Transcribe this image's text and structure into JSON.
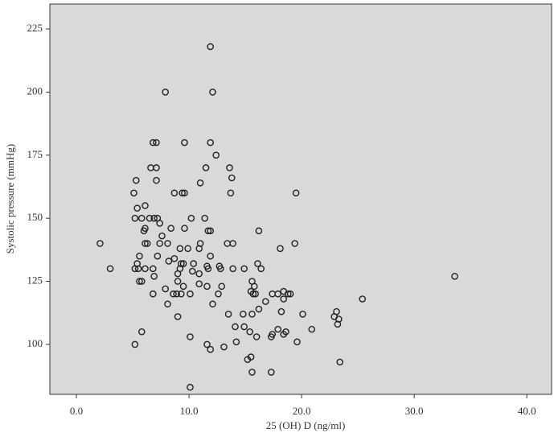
{
  "chart_data": {
    "type": "scatter",
    "xlabel": "25 (OH) D (ng/ml)",
    "ylabel": "Systolic pressure (mmHg)",
    "xlim": [
      -2.36,
      42.2
    ],
    "ylim": [
      80.2,
      234.9
    ],
    "xticks": [
      {
        "value": 0,
        "label": "0.0"
      },
      {
        "value": 10,
        "label": "10.0"
      },
      {
        "value": 20,
        "label": "20.0"
      },
      {
        "value": 30,
        "label": "30.0"
      },
      {
        "value": 40,
        "label": "40.0"
      }
    ],
    "yticks": [
      100,
      125,
      150,
      175,
      200,
      225
    ],
    "color": "#222222",
    "series": [
      {
        "name": "points",
        "x": [
          2.1,
          3.0,
          11.9,
          7.9,
          12.1,
          6.8,
          7.1,
          9.6,
          11.9,
          12.4,
          6.6,
          7.1,
          11.5,
          13.6,
          13.8,
          5.3,
          7.1,
          11.0,
          5.1,
          8.7,
          9.4,
          9.6,
          13.7,
          19.5,
          6.1,
          5.4,
          5.2,
          5.8,
          6.5,
          6.9,
          7.2,
          10.2,
          11.4,
          7.4,
          6.1,
          6.0,
          8.4,
          9.6,
          11.7,
          11.9,
          16.2,
          7.6,
          6.1,
          6.3,
          7.4,
          8.1,
          11.0,
          13.4,
          13.9,
          19.4,
          9.2,
          9.9,
          10.9,
          18.1,
          5.6,
          7.2,
          11.9,
          8.7,
          8.2,
          9.3,
          9.5,
          10.4,
          16.1,
          5.4,
          5.2,
          5.5,
          6.1,
          6.8,
          9.2,
          10.3,
          11.7,
          12.8,
          13.9,
          14.9,
          16.4,
          11.6,
          12.7,
          9.0,
          10.9,
          6.9,
          33.6,
          5.6,
          5.8,
          9.0,
          15.6,
          10.9,
          9.5,
          11.6,
          12.9,
          15.8,
          7.9,
          15.5,
          15.9,
          15.7,
          6.8,
          8.6,
          8.9,
          9.3,
          10.1,
          12.6,
          17.4,
          17.9,
          18.4,
          18.8,
          19.0,
          18.4,
          25.4,
          16.8,
          12.1,
          8.1,
          16.2,
          18.2,
          23.1,
          13.5,
          14.8,
          15.6,
          20.1,
          9.0,
          22.9,
          23.3,
          23.2,
          14.9,
          14.1,
          20.9,
          17.9,
          5.8,
          15.4,
          18.6,
          17.4,
          18.4,
          17.3,
          10.1,
          16.0,
          14.2,
          19.6,
          5.2,
          11.6,
          11.9,
          13.1,
          15.5,
          15.2,
          23.4,
          15.6,
          17.3,
          10.1
        ],
        "values": [
          140,
          130,
          218,
          200,
          200,
          180,
          180,
          180,
          180,
          175,
          170,
          170,
          170,
          170,
          166,
          165,
          165,
          164,
          160,
          160,
          160,
          160,
          160,
          160,
          155,
          154,
          150,
          150,
          150,
          150,
          150,
          150,
          150,
          148,
          146,
          145,
          146,
          146,
          145,
          145,
          145,
          143,
          140,
          140,
          140,
          140,
          140,
          140,
          140,
          140,
          138,
          138,
          138,
          138,
          135,
          135,
          135,
          134,
          133,
          132,
          132,
          132,
          132,
          132,
          130,
          130,
          130,
          130,
          130,
          129,
          130,
          130,
          130,
          130,
          130,
          131,
          131,
          128,
          128,
          127,
          127,
          125,
          125,
          125,
          125,
          124,
          123,
          123,
          123,
          123,
          122,
          121,
          120,
          120,
          120,
          120,
          120,
          120,
          120,
          120,
          120,
          120,
          121,
          120,
          120,
          118,
          118,
          117,
          116,
          116,
          114,
          113,
          113,
          112,
          112,
          112,
          112,
          111,
          111,
          110,
          108,
          107,
          107,
          106,
          106,
          105,
          105,
          105,
          104,
          104,
          103,
          103,
          103,
          101,
          101,
          100,
          100,
          98,
          99,
          95,
          94,
          93,
          89,
          89,
          83
        ]
      }
    ]
  }
}
